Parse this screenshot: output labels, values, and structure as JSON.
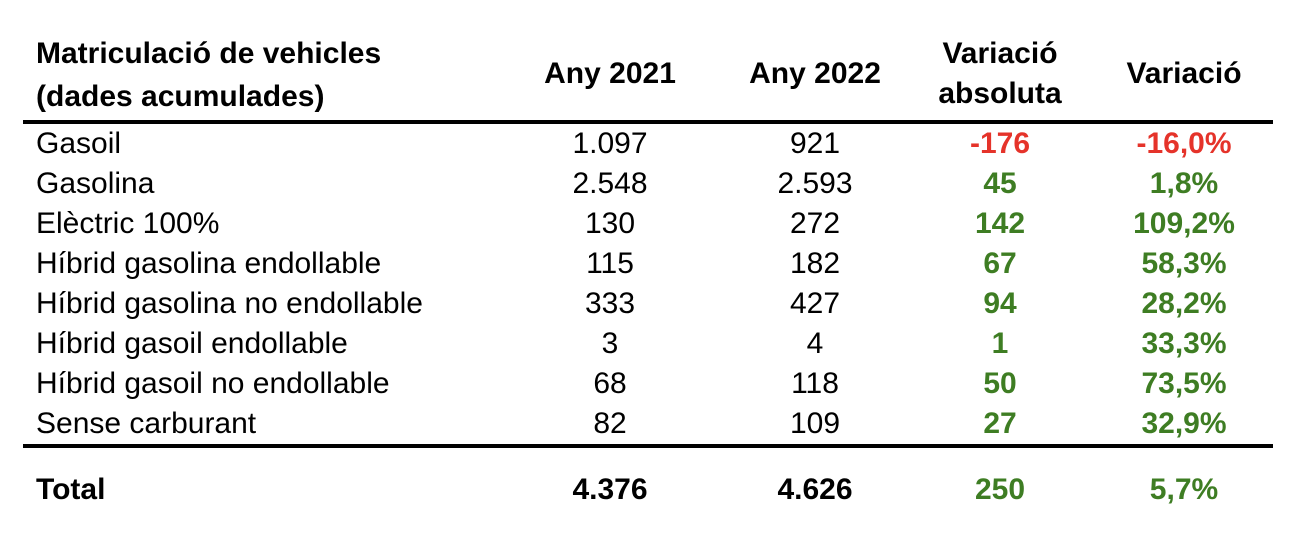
{
  "colors": {
    "positive_green": "#3E7D23",
    "negative_red": "#E5332A",
    "text": "#000000",
    "rule": "#000000",
    "background": "#ffffff"
  },
  "table": {
    "title": "Matriculació de vehicles",
    "subtitle": "(dades acumulades)",
    "headers": {
      "any2021": "Any 2021",
      "any2022": "Any 2022",
      "variacio_absoluta": "Variació\nabsoluta",
      "variacio": "Variació"
    },
    "rows": [
      {
        "label": "Gasoil",
        "any2021": "1.097",
        "any2022": "921",
        "variacio_absoluta": "-176",
        "variacio": "-16,0%",
        "trend": "negative"
      },
      {
        "label": "Gasolina",
        "any2021": "2.548",
        "any2022": "2.593",
        "variacio_absoluta": "45",
        "variacio": "1,8%",
        "trend": "positive"
      },
      {
        "label": "Elèctric 100%",
        "any2021": "130",
        "any2022": "272",
        "variacio_absoluta": "142",
        "variacio": "109,2%",
        "trend": "positive"
      },
      {
        "label": "Híbrid gasolina endollable",
        "any2021": "115",
        "any2022": "182",
        "variacio_absoluta": "67",
        "variacio": "58,3%",
        "trend": "positive"
      },
      {
        "label": "Híbrid gasolina no endollable",
        "any2021": "333",
        "any2022": "427",
        "variacio_absoluta": "94",
        "variacio": "28,2%",
        "trend": "positive"
      },
      {
        "label": "Híbrid gasoil endollable",
        "any2021": "3",
        "any2022": "4",
        "variacio_absoluta": "1",
        "variacio": "33,3%",
        "trend": "positive"
      },
      {
        "label": "Híbrid gasoil no endollable",
        "any2021": "68",
        "any2022": "118",
        "variacio_absoluta": "50",
        "variacio": "73,5%",
        "trend": "positive"
      },
      {
        "label": "Sense carburant",
        "any2021": "82",
        "any2022": "109",
        "variacio_absoluta": "27",
        "variacio": "32,9%",
        "trend": "positive"
      }
    ],
    "total": {
      "label": "Total",
      "any2021": "4.376",
      "any2022": "4.626",
      "variacio_absoluta": "250",
      "variacio": "5,7%",
      "trend": "positive"
    }
  },
  "chart_data": {
    "type": "table",
    "title": "Matriculació de vehicles (dades acumulades)",
    "columns": [
      "Matriculació de vehicles (dades acumulades)",
      "Any 2021",
      "Any 2022",
      "Variació absoluta",
      "Variació"
    ],
    "rows": [
      [
        "Gasoil",
        1097,
        921,
        -176,
        -16.0
      ],
      [
        "Gasolina",
        2548,
        2593,
        45,
        1.8
      ],
      [
        "Elèctric 100%",
        130,
        272,
        142,
        109.2
      ],
      [
        "Híbrid gasolina endollable",
        115,
        182,
        67,
        58.3
      ],
      [
        "Híbrid gasolina no endollable",
        333,
        427,
        94,
        28.2
      ],
      [
        "Híbrid gasoil endollable",
        3,
        4,
        1,
        33.3
      ],
      [
        "Híbrid gasoil no endollable",
        68,
        118,
        50,
        73.5
      ],
      [
        "Sense carburant",
        82,
        109,
        27,
        32.9
      ]
    ],
    "total_row": [
      "Total",
      4376,
      4626,
      250,
      5.7
    ],
    "variacio_units": "percent",
    "notes": "Negative variation shown in red, positive in green"
  }
}
